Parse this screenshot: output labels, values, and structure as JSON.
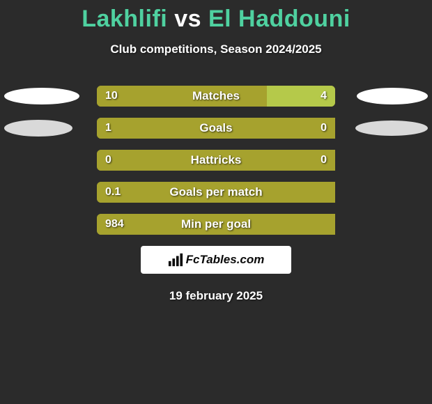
{
  "colors": {
    "page_bg": "#2b2b2b",
    "title_p1": "#4fd1a0",
    "title_vs": "#ffffff",
    "title_p2": "#4fd1a0",
    "subtitle_text": "#ffffff",
    "bar_left": "#a6a22e",
    "bar_right": "#b5c94a",
    "bar_track": "#a6a22e",
    "bar_value_text": "#ffffff",
    "bar_label_text": "#ffffff",
    "ellipse_white": "#ffffff",
    "ellipse_grey": "#d9d9d9",
    "logo_bg": "#ffffff",
    "logo_text": "#0a0a0a",
    "date_text": "#ffffff"
  },
  "title": {
    "player1": "Lakhlifi",
    "vs": "vs",
    "player2": "El Haddouni"
  },
  "subtitle": "Club competitions, Season 2024/2025",
  "date": "19 february 2025",
  "logo": {
    "text": "FcTables.com"
  },
  "ellipse_sizes": {
    "row0": {
      "left_w": 108,
      "left_h": 24,
      "right_w": 102,
      "right_h": 24
    },
    "row1": {
      "left_w": 98,
      "left_h": 24,
      "right_w": 104,
      "right_h": 22
    }
  },
  "stats": [
    {
      "label": "Matches",
      "left_val": "10",
      "right_val": "4",
      "left_num": 10,
      "right_num": 4,
      "has_ellipses": true,
      "ellipses": {
        "left_color": "ellipse_white",
        "right_color": "ellipse_white",
        "size_key": "row0"
      }
    },
    {
      "label": "Goals",
      "left_val": "1",
      "right_val": "0",
      "left_num": 1,
      "right_num": 0,
      "has_ellipses": true,
      "ellipses": {
        "left_color": "ellipse_grey",
        "right_color": "ellipse_grey",
        "size_key": "row1"
      }
    },
    {
      "label": "Hattricks",
      "left_val": "0",
      "right_val": "0",
      "left_num": 0,
      "right_num": 0,
      "has_ellipses": false
    },
    {
      "label": "Goals per match",
      "left_val": "0.1",
      "right_val": "",
      "left_num": 0.1,
      "right_num": 0,
      "has_ellipses": false
    },
    {
      "label": "Min per goal",
      "left_val": "984",
      "right_val": "",
      "left_num": 984,
      "right_num": 0,
      "has_ellipses": false
    }
  ]
}
